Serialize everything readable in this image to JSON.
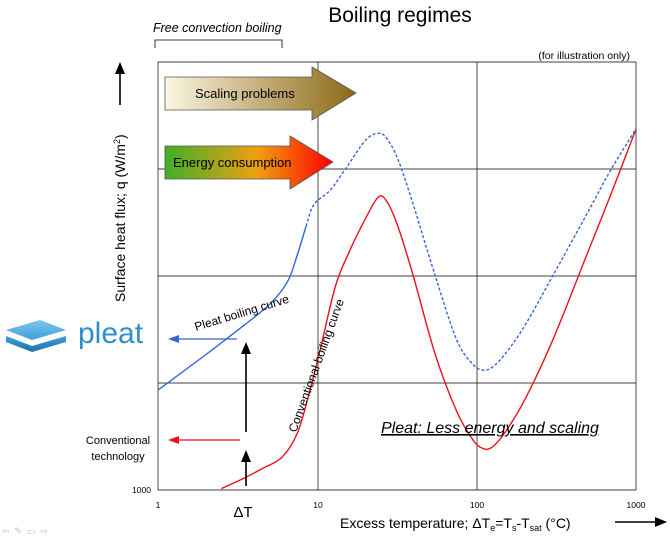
{
  "chart_data": {
    "type": "line",
    "title": "Boiling regimes",
    "note": "(for illustration only)",
    "regime_label": "Free convection boiling",
    "xlabel": "Excess temperature; ΔT",
    "xlabel_sub_e": "e",
    "xlabel_eq": "=T",
    "xlabel_sub_s": "s",
    "xlabel_minus": "-T",
    "xlabel_sub_sat": "sat",
    "xlabel_unit": " (°C)",
    "ylabel": "Surface heat flux; q (W/m",
    "ylabel_sup": "2",
    "ylabel_close": ")",
    "x_scale": "log",
    "xlim": [
      1,
      1000
    ],
    "x_ticks": [
      "1",
      "10",
      "100",
      "1000"
    ],
    "y_ticks": [
      "1000"
    ],
    "grid": true,
    "series": [
      {
        "name": "Conventional boiling curve",
        "color": "#e8121c",
        "style": "solid",
        "values": [
          [
            2.5,
            1.0
          ],
          [
            3.5,
            8.5
          ],
          [
            4.5,
            15.0
          ],
          [
            6.0,
            23.0
          ],
          [
            7.5,
            40.0
          ],
          [
            9.0,
            70.0
          ],
          [
            10.5,
            100.0
          ],
          [
            13.0,
            143.0
          ],
          [
            16.0,
            168.0
          ],
          [
            20.0,
            190.0
          ],
          [
            24.0,
            205.0
          ],
          [
            27.0,
            203.0
          ],
          [
            32.0,
            185.0
          ],
          [
            40.0,
            150.0
          ],
          [
            55.0,
            95.0
          ],
          [
            75.0,
            55.0
          ],
          [
            95.0,
            35.0
          ],
          [
            110.0,
            29.0
          ],
          [
            125.0,
            30.0
          ],
          [
            150.0,
            40.0
          ],
          [
            200.0,
            63.0
          ],
          [
            300.0,
            105.0
          ],
          [
            500.0,
            167.0
          ],
          [
            700.0,
            208.0
          ],
          [
            1000.0,
            253.0
          ]
        ]
      },
      {
        "name": "Pleat boiling curve",
        "color": "#3366dd",
        "style": "solid",
        "values": [
          [
            1.0,
            70.0
          ],
          [
            2.0,
            95.0
          ],
          [
            3.0,
            110.0
          ],
          [
            5.0,
            130.0
          ],
          [
            6.5,
            146.0
          ],
          [
            7.5,
            165.0
          ],
          [
            8.5,
            185.0
          ]
        ]
      },
      {
        "name": "Pleat boiling curve (dashed continuation)",
        "color": "#3366dd",
        "style": "dashed",
        "values": [
          [
            8.5,
            185.0
          ],
          [
            9.5,
            200.0
          ],
          [
            12.0,
            210.0
          ],
          [
            15.0,
            225.0
          ],
          [
            20.0,
            245.0
          ],
          [
            24.0,
            250.0
          ],
          [
            27.0,
            247.0
          ],
          [
            32.0,
            232.0
          ],
          [
            40.0,
            200.0
          ],
          [
            55.0,
            150.0
          ],
          [
            75.0,
            105.0
          ],
          [
            95.0,
            88.0
          ],
          [
            110.0,
            84.0
          ],
          [
            125.0,
            86.0
          ],
          [
            150.0,
            95.0
          ],
          [
            200.0,
            115.0
          ],
          [
            300.0,
            150.0
          ],
          [
            500.0,
            195.0
          ],
          [
            700.0,
            225.0
          ],
          [
            1000.0,
            253.0
          ]
        ]
      }
    ],
    "annotations": {
      "scaling": "Scaling problems",
      "energy": "Energy consumption",
      "pleat_curve": "Pleat boiling curve",
      "conventional_curve": "Conventional boiling curve",
      "conventional_tech": [
        "Conventional",
        "technology"
      ],
      "pleat_logo": "pleat",
      "claim": "Pleat: Less energy and scaling",
      "delta": "ΔT"
    }
  },
  "colors": {
    "scaling_arrow": [
      "#fdf6e3",
      "#8b6914"
    ],
    "energy_arrow": [
      "#3faf2a",
      "#ff0000"
    ],
    "pleat_blue": "#3366dd",
    "conventional_red": "#e8121c",
    "logo_blue": "#2f8fc8"
  },
  "slide_controls": [
    "⇦",
    "✎",
    "▭",
    "⇨"
  ]
}
